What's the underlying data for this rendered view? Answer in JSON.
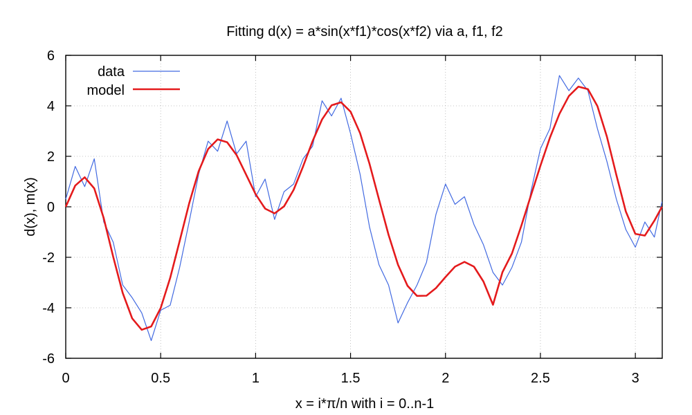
{
  "chart_data": {
    "type": "line",
    "title": "Fitting d(x) = a*sin(x*f1)*cos(x*f2) via a, f1, f2",
    "xlabel": "x = i*π/n  with  i = 0..n-1",
    "ylabel": "d(x), m(x)",
    "xlim": [
      0,
      3.1416
    ],
    "ylim": [
      -6,
      6
    ],
    "x_ticks": [
      0,
      0.5,
      1,
      1.5,
      2,
      2.5,
      3
    ],
    "x_tick_labels": [
      "0",
      "0.5",
      "1",
      "1.5",
      "2",
      "2.5",
      "3"
    ],
    "y_ticks": [
      -6,
      -4,
      -2,
      0,
      2,
      4,
      6
    ],
    "y_tick_labels": [
      "-6",
      "-4",
      "-2",
      "0",
      "2",
      "4",
      "6"
    ],
    "grid": true,
    "legend_position": "top-left",
    "series": [
      {
        "name": "data",
        "color": "#4169e1",
        "style": "noisy-line",
        "x": [
          0,
          0.05,
          0.1,
          0.15,
          0.2,
          0.25,
          0.3,
          0.35,
          0.4,
          0.45,
          0.5,
          0.55,
          0.6,
          0.65,
          0.7,
          0.75,
          0.8,
          0.85,
          0.9,
          0.95,
          1.0,
          1.05,
          1.1,
          1.15,
          1.2,
          1.25,
          1.3,
          1.35,
          1.4,
          1.45,
          1.5,
          1.55,
          1.6,
          1.65,
          1.7,
          1.75,
          1.8,
          1.85,
          1.9,
          1.95,
          2.0,
          2.05,
          2.1,
          2.15,
          2.2,
          2.25,
          2.3,
          2.35,
          2.4,
          2.45,
          2.5,
          2.55,
          2.6,
          2.65,
          2.7,
          2.75,
          2.8,
          2.85,
          2.9,
          2.95,
          3.0,
          3.05,
          3.1,
          3.14
        ],
        "y": [
          0.3,
          1.6,
          0.8,
          1.9,
          -0.6,
          -1.4,
          -3.1,
          -3.6,
          -4.2,
          -5.3,
          -4.1,
          -3.9,
          -2.4,
          -0.6,
          1.3,
          2.6,
          2.2,
          3.4,
          2.1,
          2.6,
          0.4,
          1.1,
          -0.5,
          0.6,
          0.9,
          1.9,
          2.4,
          4.2,
          3.6,
          4.3,
          2.9,
          1.3,
          -0.8,
          -2.3,
          -3.1,
          -4.6,
          -3.8,
          -3.1,
          -2.2,
          -0.3,
          0.9,
          0.1,
          0.4,
          -0.7,
          -1.5,
          -2.6,
          -3.1,
          -2.4,
          -1.4,
          0.6,
          2.3,
          3.1,
          5.2,
          4.6,
          5.1,
          4.6,
          3.1,
          1.8,
          0.3,
          -0.9,
          -1.6,
          -0.6,
          -1.2,
          0.2
        ]
      },
      {
        "name": "model",
        "color": "#e41a1c",
        "style": "smooth-line",
        "x": [
          0,
          0.05,
          0.1,
          0.15,
          0.2,
          0.25,
          0.3,
          0.35,
          0.4,
          0.45,
          0.5,
          0.55,
          0.6,
          0.65,
          0.7,
          0.75,
          0.8,
          0.85,
          0.9,
          0.95,
          1.0,
          1.05,
          1.1,
          1.15,
          1.2,
          1.25,
          1.3,
          1.35,
          1.4,
          1.45,
          1.5,
          1.55,
          1.6,
          1.65,
          1.7,
          1.75,
          1.8,
          1.85,
          1.9,
          1.95,
          2.0,
          2.05,
          2.1,
          2.15,
          2.2,
          2.25,
          2.3,
          2.35,
          2.4,
          2.45,
          2.5,
          2.55,
          2.6,
          2.65,
          2.7,
          2.75,
          2.8,
          2.85,
          2.9,
          2.95,
          3.0,
          3.05,
          3.1,
          3.14
        ],
        "y": [
          0.0,
          0.84,
          1.17,
          0.73,
          -0.45,
          -1.98,
          -3.41,
          -4.42,
          -4.87,
          -4.74,
          -4.01,
          -2.82,
          -1.36,
          0.13,
          1.41,
          2.29,
          2.67,
          2.56,
          2.05,
          1.27,
          0.5,
          -0.07,
          -0.26,
          0.02,
          0.67,
          1.6,
          2.6,
          3.46,
          4.02,
          4.14,
          3.77,
          2.92,
          1.7,
          0.29,
          -1.11,
          -2.3,
          -3.13,
          -3.53,
          -3.52,
          -3.22,
          -2.78,
          -2.37,
          -2.18,
          -2.37,
          -2.96,
          -3.88,
          -2.59,
          -1.85,
          -0.74,
          0.45,
          1.63,
          2.74,
          3.68,
          4.39,
          4.76,
          4.66,
          3.99,
          2.78,
          1.26,
          -0.19,
          -1.07,
          -1.14,
          -0.55,
          0.0
        ]
      }
    ]
  }
}
